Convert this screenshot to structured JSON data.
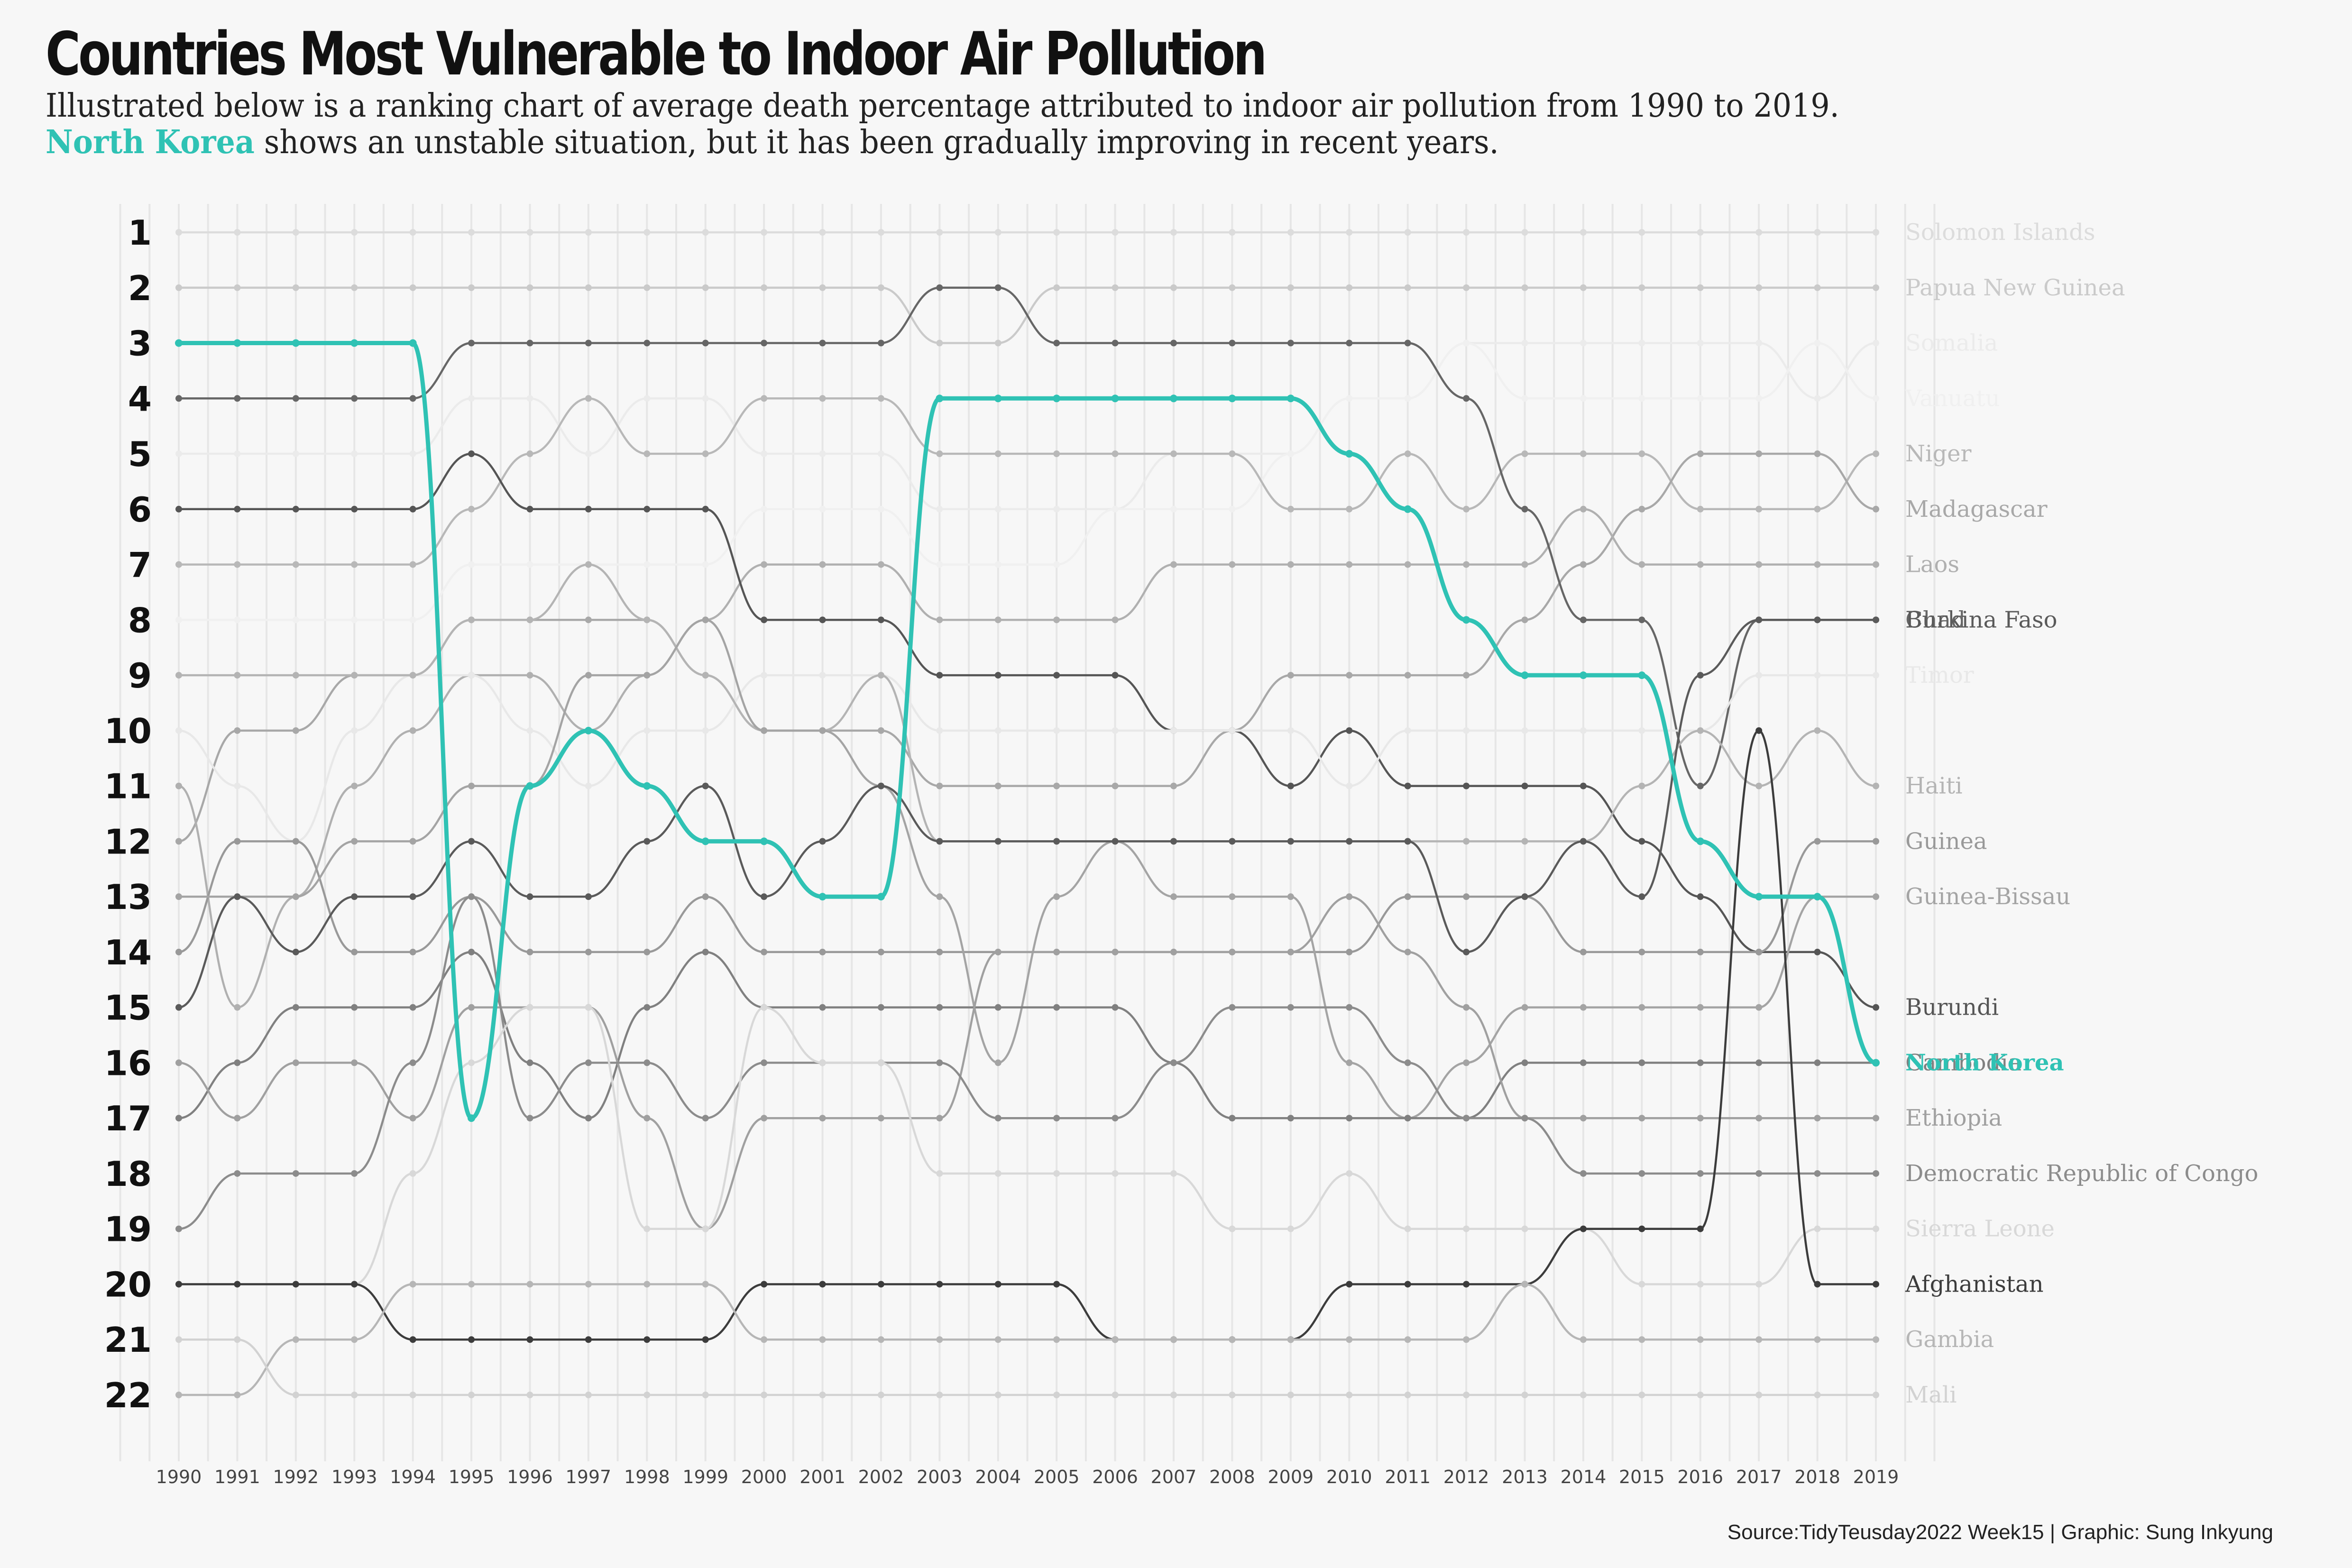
{
  "title": "Countries Most Vulnerable to Indoor Air Pollution",
  "subtitle": {
    "line1": "Illustrated below is a ranking chart of average death percentage attributed to indoor air pollution from 1990 to 2019.",
    "highlight": "North Korea",
    "line2_rest": " shows an unstable situation, but it has been gradually improving in recent years."
  },
  "caption": "Source:TidyTeusday2022 Week15 | Graphic: Sung Inkyung",
  "colors": {
    "highlight": "#2fc2b4",
    "background": "#f7f7f7",
    "grid": "#e6e6e6"
  },
  "chart_data": {
    "type": "line",
    "subtype": "bump",
    "title": "Countries Most Vulnerable to Indoor Air Pollution",
    "x": [
      1990,
      1991,
      1992,
      1993,
      1994,
      1995,
      1996,
      1997,
      1998,
      1999,
      2000,
      2001,
      2002,
      2003,
      2004,
      2005,
      2006,
      2007,
      2008,
      2009,
      2010,
      2011,
      2012,
      2013,
      2014,
      2015,
      2016,
      2017,
      2018,
      2019
    ],
    "ranks": [
      1,
      2,
      3,
      4,
      5,
      6,
      7,
      8,
      9,
      10,
      11,
      12,
      13,
      14,
      15,
      16,
      17,
      18,
      19,
      20,
      21,
      22
    ],
    "ylim": [
      1,
      22
    ],
    "y_reversed": true,
    "grid": "vertical",
    "highlight_series": "North Korea",
    "series": [
      {
        "name": "Solomon Islands",
        "shade": "#dcdcdc",
        "values": [
          1,
          1,
          1,
          1,
          1,
          1,
          1,
          1,
          1,
          1,
          1,
          1,
          1,
          1,
          1,
          1,
          1,
          1,
          1,
          1,
          1,
          1,
          1,
          1,
          1,
          1,
          1,
          1,
          1,
          1
        ]
      },
      {
        "name": "Papua New Guinea",
        "shade": "#cacaca",
        "values": [
          2,
          2,
          2,
          2,
          2,
          2,
          2,
          2,
          2,
          2,
          2,
          2,
          2,
          3,
          3,
          2,
          2,
          2,
          2,
          2,
          2,
          2,
          2,
          2,
          2,
          2,
          2,
          2,
          2,
          2
        ]
      },
      {
        "name": "Somalia",
        "shade": "#ebebeb",
        "values": [
          5,
          5,
          5,
          5,
          5,
          4,
          4,
          5,
          4,
          4,
          5,
          5,
          5,
          6,
          6,
          6,
          6,
          5,
          5,
          5,
          4,
          4,
          3,
          3,
          3,
          3,
          3,
          3,
          4,
          3
        ]
      },
      {
        "name": "Vanuatu",
        "shade": "#f0f0f0",
        "values": [
          8,
          8,
          8,
          8,
          8,
          7,
          7,
          7,
          7,
          7,
          6,
          6,
          6,
          7,
          7,
          7,
          6,
          6,
          6,
          5,
          4,
          4,
          3,
          4,
          4,
          4,
          4,
          4,
          3,
          4
        ]
      },
      {
        "name": "Niger",
        "shade": "#b8b8b8",
        "values": [
          7,
          7,
          7,
          7,
          7,
          6,
          5,
          4,
          5,
          5,
          4,
          4,
          4,
          5,
          5,
          5,
          5,
          5,
          5,
          6,
          6,
          5,
          6,
          5,
          5,
          5,
          6,
          6,
          6,
          5
        ]
      },
      {
        "name": "Madagascar",
        "shade": "#a8a8a8",
        "values": [
          12,
          10,
          10,
          9,
          9,
          8,
          8,
          8,
          8,
          9,
          10,
          10,
          10,
          11,
          11,
          11,
          11,
          11,
          10,
          9,
          9,
          9,
          9,
          8,
          7,
          6,
          5,
          5,
          5,
          6
        ]
      },
      {
        "name": "Laos",
        "shade": "#b0b0b0",
        "values": [
          11,
          15,
          13,
          11,
          10,
          9,
          9,
          10,
          9,
          8,
          7,
          7,
          7,
          8,
          8,
          8,
          8,
          7,
          7,
          7,
          7,
          7,
          7,
          7,
          6,
          7,
          7,
          7,
          7,
          7
        ]
      },
      {
        "name": "Burundi",
        "shade": "#555555",
        "values": [
          6,
          6,
          6,
          6,
          6,
          5,
          6,
          6,
          6,
          6,
          8,
          8,
          8,
          9,
          9,
          9,
          9,
          10,
          10,
          11,
          10,
          11,
          11,
          11,
          11,
          12,
          13,
          14,
          14,
          15
        ]
      },
      {
        "name": "Chad",
        "shade": "#666666",
        "values": [
          4,
          4,
          4,
          4,
          4,
          3,
          3,
          3,
          3,
          3,
          3,
          3,
          3,
          2,
          2,
          3,
          3,
          3,
          3,
          3,
          3,
          3,
          4,
          6,
          8,
          8,
          11,
          8,
          8,
          8
        ]
      },
      {
        "name": "Timor",
        "shade": "#e8e8e8",
        "values": [
          10,
          11,
          12,
          10,
          9,
          9,
          10,
          11,
          10,
          10,
          9,
          9,
          9,
          10,
          10,
          10,
          10,
          10,
          10,
          10,
          11,
          10,
          10,
          10,
          10,
          10,
          10,
          9,
          9,
          9
        ]
      },
      {
        "name": "Haiti",
        "shade": "#b4b4b4",
        "values": [
          9,
          9,
          9,
          9,
          9,
          8,
          8,
          7,
          8,
          9,
          10,
          10,
          9,
          12,
          12,
          12,
          12,
          12,
          12,
          12,
          12,
          12,
          12,
          12,
          12,
          11,
          10,
          11,
          10,
          11
        ]
      },
      {
        "name": "Guinea",
        "shade": "#999999",
        "values": [
          14,
          12,
          12,
          14,
          14,
          13,
          14,
          14,
          14,
          13,
          14,
          14,
          14,
          14,
          14,
          14,
          14,
          14,
          14,
          14,
          14,
          13,
          13,
          13,
          14,
          14,
          14,
          14,
          12,
          12
        ]
      },
      {
        "name": "Guinea-Bissau",
        "shade": "#a4a4a4",
        "values": [
          13,
          13,
          13,
          12,
          12,
          11,
          11,
          9,
          9,
          8,
          10,
          10,
          11,
          13,
          16,
          13,
          12,
          13,
          13,
          13,
          16,
          17,
          16,
          15,
          15,
          15,
          15,
          15,
          13,
          13
        ]
      },
      {
        "name": "Burkina Faso",
        "shade": "#5a5a5a",
        "values": [
          15,
          13,
          14,
          13,
          13,
          12,
          13,
          13,
          12,
          11,
          13,
          12,
          11,
          12,
          12,
          12,
          12,
          12,
          12,
          12,
          12,
          12,
          14,
          13,
          12,
          13,
          9,
          8,
          8,
          8
        ]
      },
      {
        "name": "Cambodia",
        "shade": "#808080",
        "values": [
          17,
          16,
          15,
          15,
          15,
          14,
          16,
          17,
          15,
          14,
          15,
          15,
          15,
          15,
          15,
          15,
          15,
          16,
          17,
          17,
          17,
          17,
          17,
          16,
          16,
          16,
          16,
          16,
          16,
          16
        ]
      },
      {
        "name": "North Korea",
        "shade": "#2fc2b4",
        "values": [
          3,
          3,
          3,
          3,
          3,
          17,
          11,
          10,
          11,
          12,
          12,
          13,
          13,
          4,
          4,
          4,
          4,
          4,
          4,
          4,
          5,
          6,
          8,
          9,
          9,
          9,
          12,
          13,
          13,
          16
        ]
      },
      {
        "name": "Ethiopia",
        "shade": "#a0a0a0",
        "values": [
          16,
          17,
          16,
          16,
          17,
          15,
          15,
          15,
          17,
          19,
          17,
          17,
          17,
          17,
          14,
          14,
          14,
          14,
          14,
          14,
          13,
          14,
          15,
          17,
          17,
          17,
          17,
          17,
          17,
          17
        ]
      },
      {
        "name": "Democratic Republic of Congo",
        "shade": "#8c8c8c",
        "values": [
          19,
          18,
          18,
          18,
          16,
          13,
          17,
          16,
          16,
          17,
          16,
          16,
          16,
          16,
          17,
          17,
          17,
          16,
          15,
          15,
          15,
          16,
          17,
          17,
          18,
          18,
          18,
          18,
          18,
          18
        ]
      },
      {
        "name": "Sierra Leone",
        "shade": "#d8d8d8",
        "values": [
          20,
          20,
          20,
          20,
          18,
          16,
          15,
          15,
          19,
          19,
          15,
          16,
          16,
          18,
          18,
          18,
          18,
          18,
          19,
          19,
          18,
          19,
          19,
          19,
          19,
          20,
          20,
          20,
          19,
          19
        ]
      },
      {
        "name": "Afghanistan",
        "shade": "#3c3c3c",
        "values": [
          20,
          20,
          20,
          20,
          21,
          21,
          21,
          21,
          21,
          21,
          20,
          20,
          20,
          20,
          20,
          20,
          21,
          21,
          21,
          21,
          20,
          20,
          20,
          20,
          19,
          19,
          19,
          10,
          20,
          20
        ]
      },
      {
        "name": "Gambia",
        "shade": "#b6b6b6",
        "values": [
          22,
          22,
          21,
          21,
          20,
          20,
          20,
          20,
          20,
          20,
          21,
          21,
          21,
          21,
          21,
          21,
          21,
          21,
          21,
          21,
          21,
          21,
          21,
          20,
          21,
          21,
          21,
          21,
          21,
          21
        ]
      },
      {
        "name": "Mali",
        "shade": "#d2d2d2",
        "values": [
          21,
          21,
          22,
          22,
          22,
          22,
          22,
          22,
          22,
          22,
          22,
          22,
          22,
          22,
          22,
          22,
          22,
          22,
          22,
          22,
          22,
          22,
          22,
          22,
          22,
          22,
          22,
          22,
          22,
          22
        ]
      }
    ]
  }
}
